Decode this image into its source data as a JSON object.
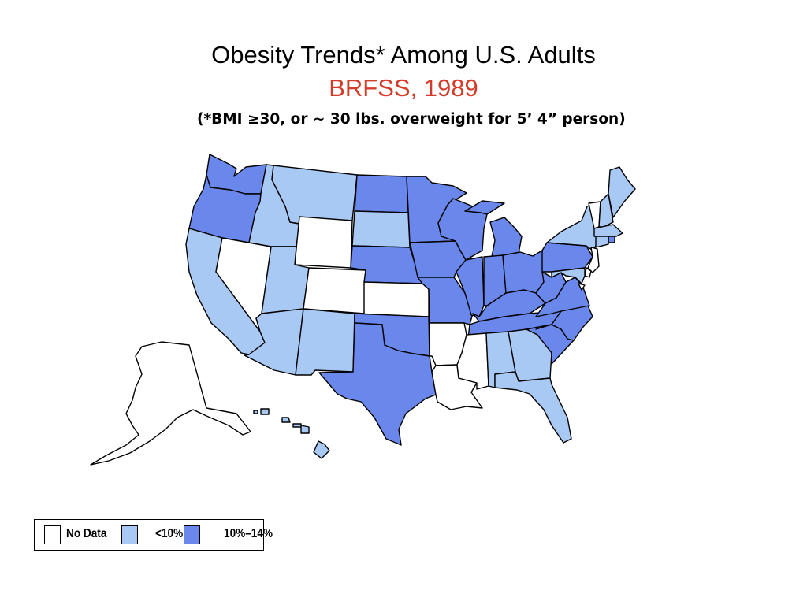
{
  "title": "Obesity Trends* Among U.S. Adults",
  "subtitle": "BRFSS, 1989",
  "note": "(*BMI ≥30, or ~ 30 lbs. overweight for 5’ 4” person)",
  "colors": {
    "subtitle": "#d23c2a",
    "no_data": "#ffffff",
    "low": "#a9c9f5",
    "mid": "#6a88eb"
  },
  "legend": [
    {
      "label": "No Data",
      "category": "no_data"
    },
    {
      "label": "<10%",
      "category": "low"
    },
    {
      "label": "10%–14%",
      "category": "mid"
    }
  ],
  "states": [
    {
      "code": "WA",
      "category": "mid"
    },
    {
      "code": "OR",
      "category": "mid"
    },
    {
      "code": "CA",
      "category": "low"
    },
    {
      "code": "NV",
      "category": "no_data"
    },
    {
      "code": "ID",
      "category": "low"
    },
    {
      "code": "MT",
      "category": "low"
    },
    {
      "code": "WY",
      "category": "no_data"
    },
    {
      "code": "UT",
      "category": "low"
    },
    {
      "code": "CO",
      "category": "no_data"
    },
    {
      "code": "AZ",
      "category": "low"
    },
    {
      "code": "NM",
      "category": "low"
    },
    {
      "code": "ND",
      "category": "mid"
    },
    {
      "code": "SD",
      "category": "low"
    },
    {
      "code": "NE",
      "category": "mid"
    },
    {
      "code": "KS",
      "category": "no_data"
    },
    {
      "code": "OK",
      "category": "mid"
    },
    {
      "code": "TX",
      "category": "mid"
    },
    {
      "code": "MN",
      "category": "mid"
    },
    {
      "code": "IA",
      "category": "mid"
    },
    {
      "code": "MO",
      "category": "mid"
    },
    {
      "code": "AR",
      "category": "no_data"
    },
    {
      "code": "LA",
      "category": "no_data"
    },
    {
      "code": "WI",
      "category": "mid"
    },
    {
      "code": "IL",
      "category": "mid"
    },
    {
      "code": "MI",
      "category": "mid"
    },
    {
      "code": "IN",
      "category": "mid"
    },
    {
      "code": "OH",
      "category": "mid"
    },
    {
      "code": "KY",
      "category": "mid"
    },
    {
      "code": "TN",
      "category": "mid"
    },
    {
      "code": "MS",
      "category": "no_data"
    },
    {
      "code": "AL",
      "category": "low"
    },
    {
      "code": "GA",
      "category": "low"
    },
    {
      "code": "FL",
      "category": "low"
    },
    {
      "code": "SC",
      "category": "mid"
    },
    {
      "code": "NC",
      "category": "mid"
    },
    {
      "code": "VA",
      "category": "mid"
    },
    {
      "code": "WV",
      "category": "mid"
    },
    {
      "code": "PA",
      "category": "mid"
    },
    {
      "code": "NY",
      "category": "low"
    },
    {
      "code": "VT",
      "category": "no_data"
    },
    {
      "code": "NH",
      "category": "low"
    },
    {
      "code": "ME",
      "category": "low"
    },
    {
      "code": "MA",
      "category": "low"
    },
    {
      "code": "RI",
      "category": "mid"
    },
    {
      "code": "CT",
      "category": "low"
    },
    {
      "code": "NJ",
      "category": "no_data"
    },
    {
      "code": "DE",
      "category": "no_data"
    },
    {
      "code": "MD",
      "category": "low"
    },
    {
      "code": "DC",
      "category": "no_data"
    },
    {
      "code": "AK",
      "category": "no_data"
    },
    {
      "code": "HI",
      "category": "low"
    }
  ]
}
